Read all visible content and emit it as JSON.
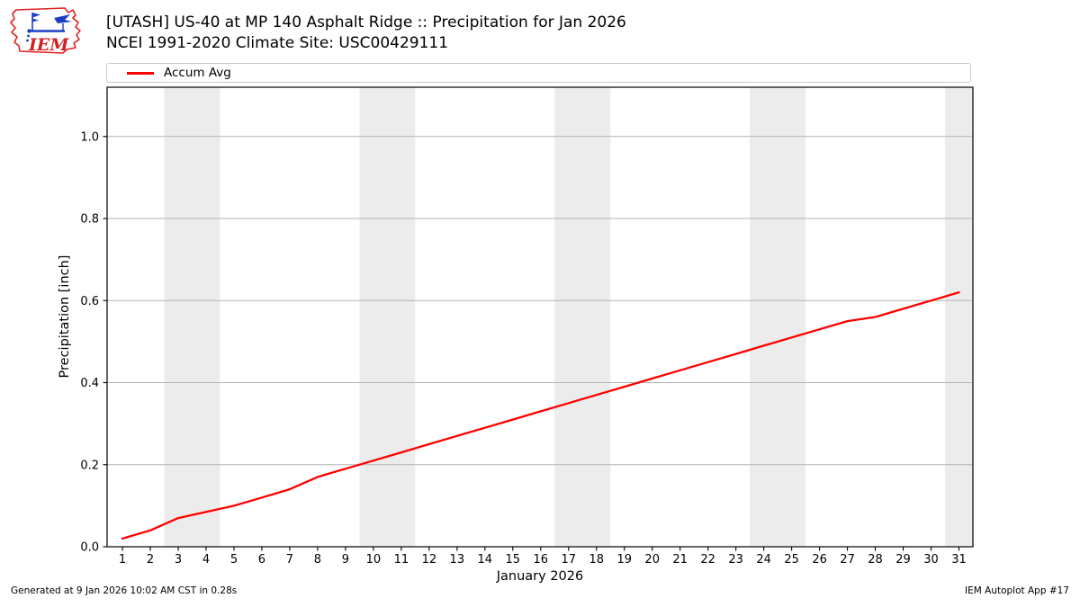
{
  "header": {
    "logo_text": "IEM"
  },
  "legend": {
    "items": [
      {
        "label": "Accum Avg",
        "color": "#ff0000"
      }
    ]
  },
  "footer": {
    "left": "Generated at 9 Jan 2026 10:02 AM CST in 0.28s",
    "right": "IEM Autoplot App #17"
  },
  "chart_data": {
    "type": "line",
    "title": "[UTASH] US-40 at MP 140 Asphalt Ridge  :: Precipitation for Jan 2026",
    "subtitle": "NCEI 1991-2020 Climate Site: USC00429111",
    "xlabel": "January 2026",
    "ylabel": "Precipitation [inch]",
    "xlim": [
      0.45,
      31.5
    ],
    "ylim": [
      0,
      1.12
    ],
    "x_ticks": [
      1,
      2,
      3,
      4,
      5,
      6,
      7,
      8,
      9,
      10,
      11,
      12,
      13,
      14,
      15,
      16,
      17,
      18,
      19,
      20,
      21,
      22,
      23,
      24,
      25,
      26,
      27,
      28,
      29,
      30,
      31
    ],
    "y_ticks": [
      0.0,
      0.2,
      0.4,
      0.6,
      0.8,
      1.0
    ],
    "grid": "horizontal",
    "legend_position": "top",
    "weekend_bands": [
      [
        2.5,
        4.5
      ],
      [
        9.5,
        11.5
      ],
      [
        16.5,
        18.5
      ],
      [
        23.5,
        25.5
      ],
      [
        30.5,
        31.5
      ]
    ],
    "colors": {
      "line": "#ff0000",
      "weekend_band": "#ececec",
      "grid": "#b3b3b3",
      "spine": "#000000"
    },
    "series": [
      {
        "name": "Accum Avg",
        "color": "#ff0000",
        "x": [
          1,
          2,
          3,
          4,
          5,
          6,
          7,
          8,
          9,
          10,
          11,
          12,
          13,
          14,
          15,
          16,
          17,
          18,
          19,
          20,
          21,
          22,
          23,
          24,
          25,
          26,
          27,
          28,
          29,
          30,
          31
        ],
        "values": [
          0.02,
          0.04,
          0.07,
          0.085,
          0.1,
          0.12,
          0.14,
          0.17,
          0.19,
          0.21,
          0.23,
          0.25,
          0.27,
          0.29,
          0.31,
          0.33,
          0.35,
          0.37,
          0.39,
          0.41,
          0.43,
          0.45,
          0.47,
          0.49,
          0.51,
          0.53,
          0.55,
          0.56,
          0.58,
          0.6,
          0.62
        ]
      }
    ]
  }
}
